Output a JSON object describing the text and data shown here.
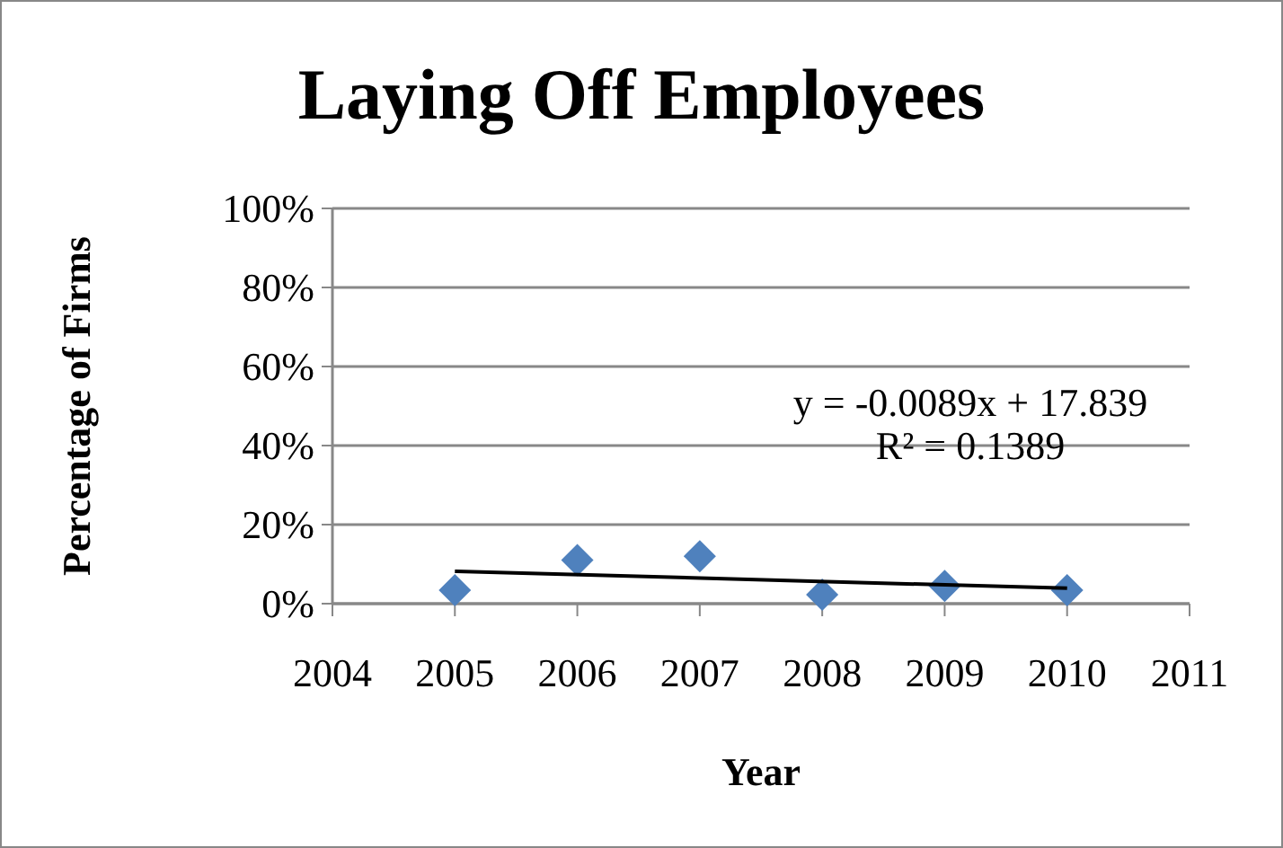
{
  "chart_data": {
    "type": "scatter",
    "title": "Laying Off Employees",
    "xlabel": "Year",
    "ylabel": "Percentage of Firms",
    "grid": "y",
    "x": [
      2005,
      2006,
      2007,
      2008,
      2009,
      2010
    ],
    "series": [
      {
        "marker": "diamond",
        "color": "#4f81bd",
        "values": [
          3.4,
          11,
          12,
          2.3,
          4.5,
          3.4
        ]
      },
      {
        "type": "line",
        "color": "#000000",
        "x": [
          2005,
          2010
        ],
        "values": [
          8.2,
          3.9
        ]
      }
    ],
    "xlim": [
      2004,
      2011
    ],
    "xticks": [
      2004,
      2005,
      2006,
      2007,
      2008,
      2009,
      2010,
      2011
    ],
    "ylim": [
      0,
      100
    ],
    "yticks": [
      {
        "value": 0,
        "label": "0%"
      },
      {
        "value": 20,
        "label": "20%"
      },
      {
        "value": 40,
        "label": "40%"
      },
      {
        "value": 60,
        "label": "60%"
      },
      {
        "value": 80,
        "label": "80%"
      },
      {
        "value": 100,
        "label": "100%"
      }
    ],
    "annotations": [
      "y = -0.0089x + 17.839",
      "R² = 0.1389"
    ]
  }
}
